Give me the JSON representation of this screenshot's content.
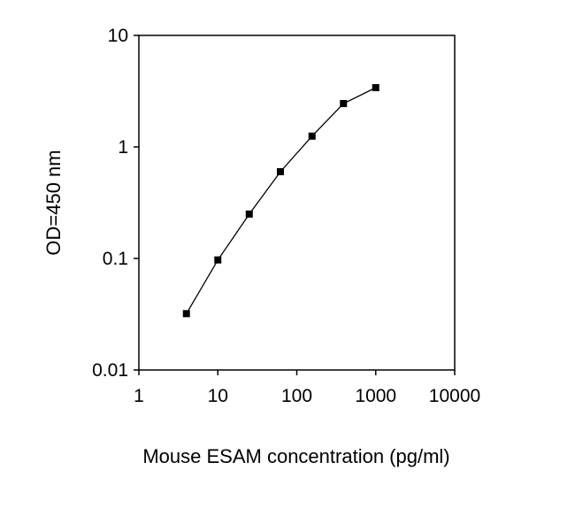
{
  "chart_data": {
    "type": "line",
    "x_scale": "log",
    "y_scale": "log",
    "xlim": [
      1,
      10000
    ],
    "ylim": [
      0.01,
      10
    ],
    "x_ticks": [
      "1",
      "10",
      "100",
      "1000",
      "10000"
    ],
    "y_ticks": [
      "0.01",
      "0.1",
      "1",
      "10"
    ],
    "xlabel": "Mouse ESAM concentration (pg/ml)",
    "ylabel": "OD=450 nm",
    "grid": false,
    "series": [
      {
        "x": [
          4,
          10,
          25,
          62,
          156,
          390,
          1000
        ],
        "y": [
          0.032,
          0.097,
          0.25,
          0.6,
          1.25,
          2.45,
          3.4
        ],
        "color": "#000000",
        "marker": "square"
      }
    ]
  }
}
